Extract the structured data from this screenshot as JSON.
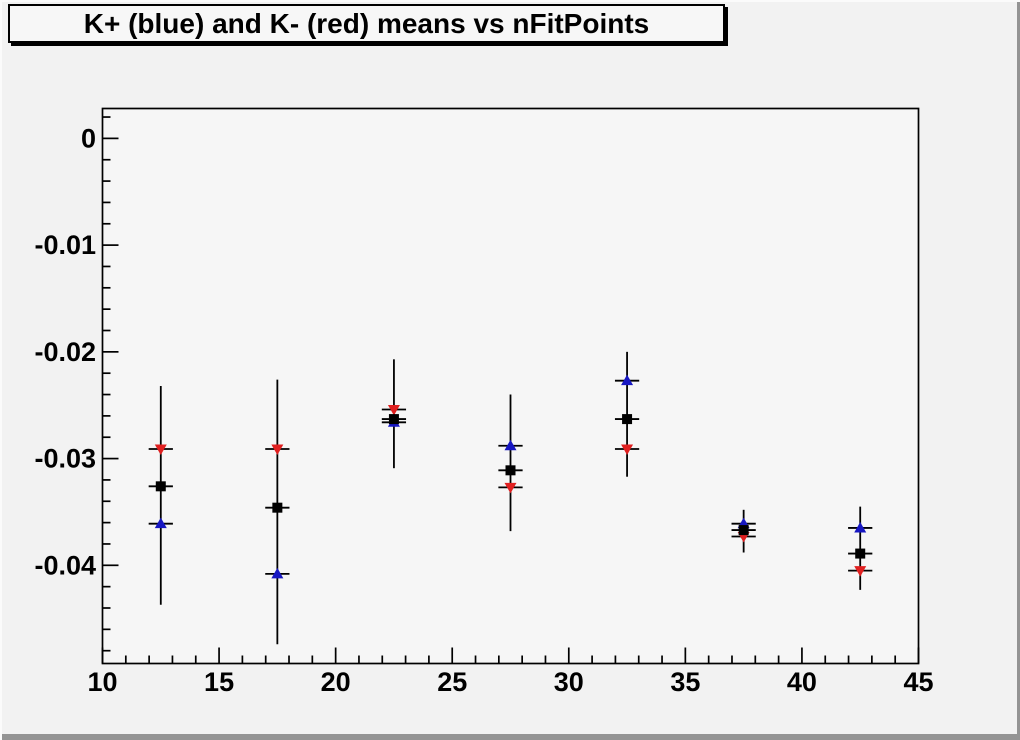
{
  "title": "K+ (blue) and K- (red) means vs nFitPoints",
  "colors": {
    "k_plus_marker": "#1717c2",
    "k_minus_marker": "#e02020",
    "mean_marker": "#000000",
    "error_bar": "#000000",
    "frame_line": "#000000",
    "canvas_bg": "#f2f2f2",
    "plot_bg": "#f6f6f6",
    "title_bg": "#f7f7f7"
  },
  "chart_data": {
    "type": "scatter",
    "title": "K+ (blue) and K- (red) means vs nFitPoints",
    "xlabel": "",
    "ylabel": "",
    "xlim": [
      10,
      45
    ],
    "ylim": [
      -0.0492,
      0.0028
    ],
    "x_ticks": [
      10,
      15,
      20,
      25,
      30,
      35,
      40,
      45
    ],
    "x_tick_labels": [
      "10",
      "15",
      "20",
      "25",
      "30",
      "35",
      "40",
      "45"
    ],
    "x_minor_step": 1,
    "y_ticks": [
      0,
      -0.01,
      -0.02,
      -0.03,
      -0.04
    ],
    "y_tick_labels": [
      "0",
      "-0.01",
      "-0.02",
      "-0.03",
      "-0.04"
    ],
    "y_minor_step": 0.002,
    "grid": false,
    "legend": "none (colors described in title)",
    "x": [
      12.5,
      17.5,
      22.5,
      27.5,
      32.5,
      37.5,
      42.5
    ],
    "series": [
      {
        "name": "K+ (blue)",
        "marker": "triangle-up",
        "color": "#1717c2",
        "values": [
          -0.0361,
          -0.0408,
          -0.0266,
          -0.0288,
          -0.0227,
          -0.0361,
          -0.0365
        ]
      },
      {
        "name": "K- (red)",
        "marker": "triangle-down",
        "color": "#e02020",
        "values": [
          -0.0291,
          -0.0291,
          -0.0254,
          -0.0327,
          -0.0291,
          -0.0373,
          -0.0405
        ]
      },
      {
        "name": "combined mean (black)",
        "marker": "square",
        "color": "#000000",
        "values": [
          -0.0326,
          -0.0346,
          -0.0263,
          -0.0311,
          -0.0263,
          -0.0367,
          -0.0389
        ]
      }
    ],
    "error_bars": [
      {
        "x": 12.5,
        "ylow": -0.0437,
        "yhigh": -0.0232
      },
      {
        "x": 17.5,
        "ylow": -0.0474,
        "yhigh": -0.0226
      },
      {
        "x": 22.5,
        "ylow": -0.0309,
        "yhigh": -0.0207
      },
      {
        "x": 27.5,
        "ylow": -0.0368,
        "yhigh": -0.024
      },
      {
        "x": 32.5,
        "ylow": -0.0317,
        "yhigh": -0.02
      },
      {
        "x": 37.5,
        "ylow": -0.0388,
        "yhigh": -0.0348
      },
      {
        "x": 42.5,
        "ylow": -0.0423,
        "yhigh": -0.0345
      }
    ],
    "x_error_halfwidth": 0.52
  }
}
